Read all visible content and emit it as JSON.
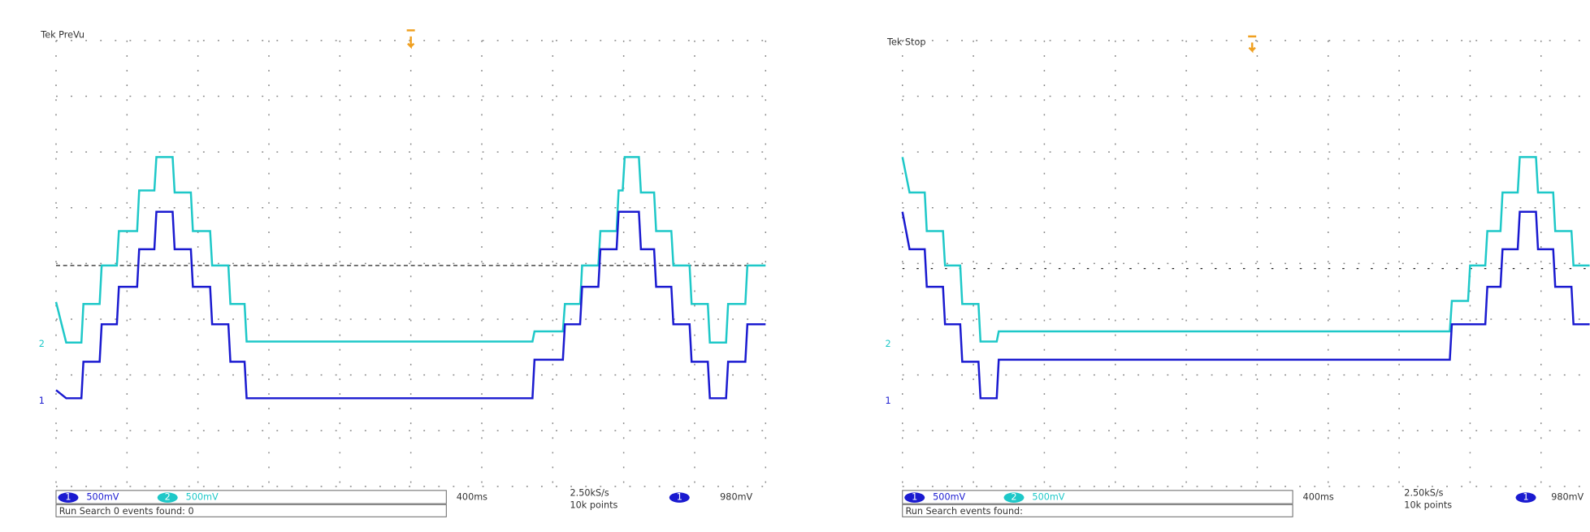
{
  "screens": [
    {
      "status": "Tek PreVu",
      "ch1_badge": "1",
      "ch2_badge": "2",
      "ch1_scale": "500mV",
      "ch2_scale": "500mV",
      "timebase": "400ms",
      "sample_rate": "2.50kS/s",
      "record_length": "10k points",
      "trigger_source": "1",
      "trigger_level": "980mV",
      "search": "Run  Search 0 events found: 0"
    },
    {
      "status": "Tek Stop",
      "ch1_badge": "1",
      "ch2_badge": "2",
      "ch1_scale": "500mV",
      "ch2_scale": "500mV",
      "timebase": "400ms",
      "sample_rate": "2.50kS/s",
      "record_length": "10k points",
      "trigger_source": "1",
      "trigger_level": "980mV",
      "search": "Run  Search events found:"
    }
  ]
}
